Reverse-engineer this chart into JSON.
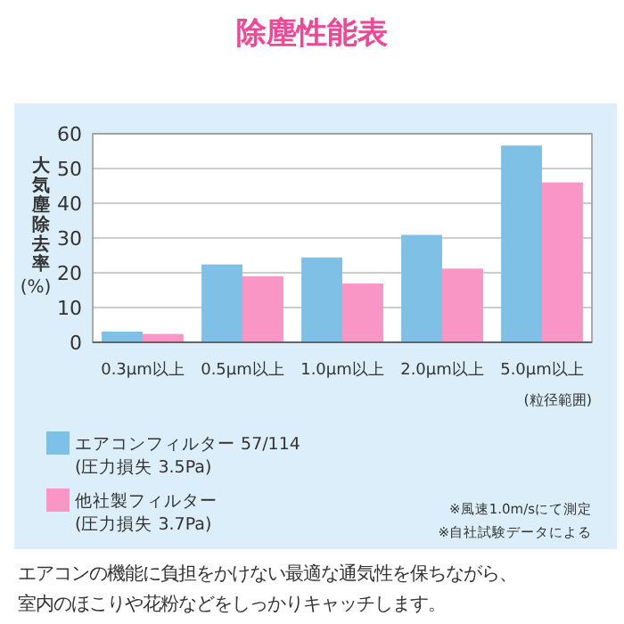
{
  "chart_data": {
    "type": "bar",
    "title": "除塵性能表",
    "ylabel": "大気塵除去率\n(%)",
    "categories": [
      "0.3μm以上",
      "0.5μm以上",
      "1.0μm以上",
      "2.0μm以上",
      "5.0μm以上"
    ],
    "series": [
      {
        "name": "エアコンフィルター 57/114\n(圧力損失 3.5Pa)",
        "color": "#7fc1e6",
        "values": [
          3.1,
          22.4,
          24.4,
          30.9,
          56.6
        ]
      },
      {
        "name": "他社製フィルター\n(圧力損失 3.7Pa)",
        "color": "#f996c6",
        "values": [
          2.4,
          19.0,
          16.9,
          21.2,
          46.0
        ]
      }
    ],
    "ylim": [
      0,
      60
    ],
    "yticks": [
      0,
      10,
      20,
      30,
      40,
      50,
      60
    ],
    "grid": "y",
    "legend": "bottom left",
    "annotations": [
      "(粒径範囲)",
      "※風速1.0m/sにて測定\n※自社試験データによる",
      "エアコンの機能に負担をかけない最適な通気性を保ちながら、",
      "室内のほこりや花粉などをしっかりキャッチします。"
    ]
  }
}
